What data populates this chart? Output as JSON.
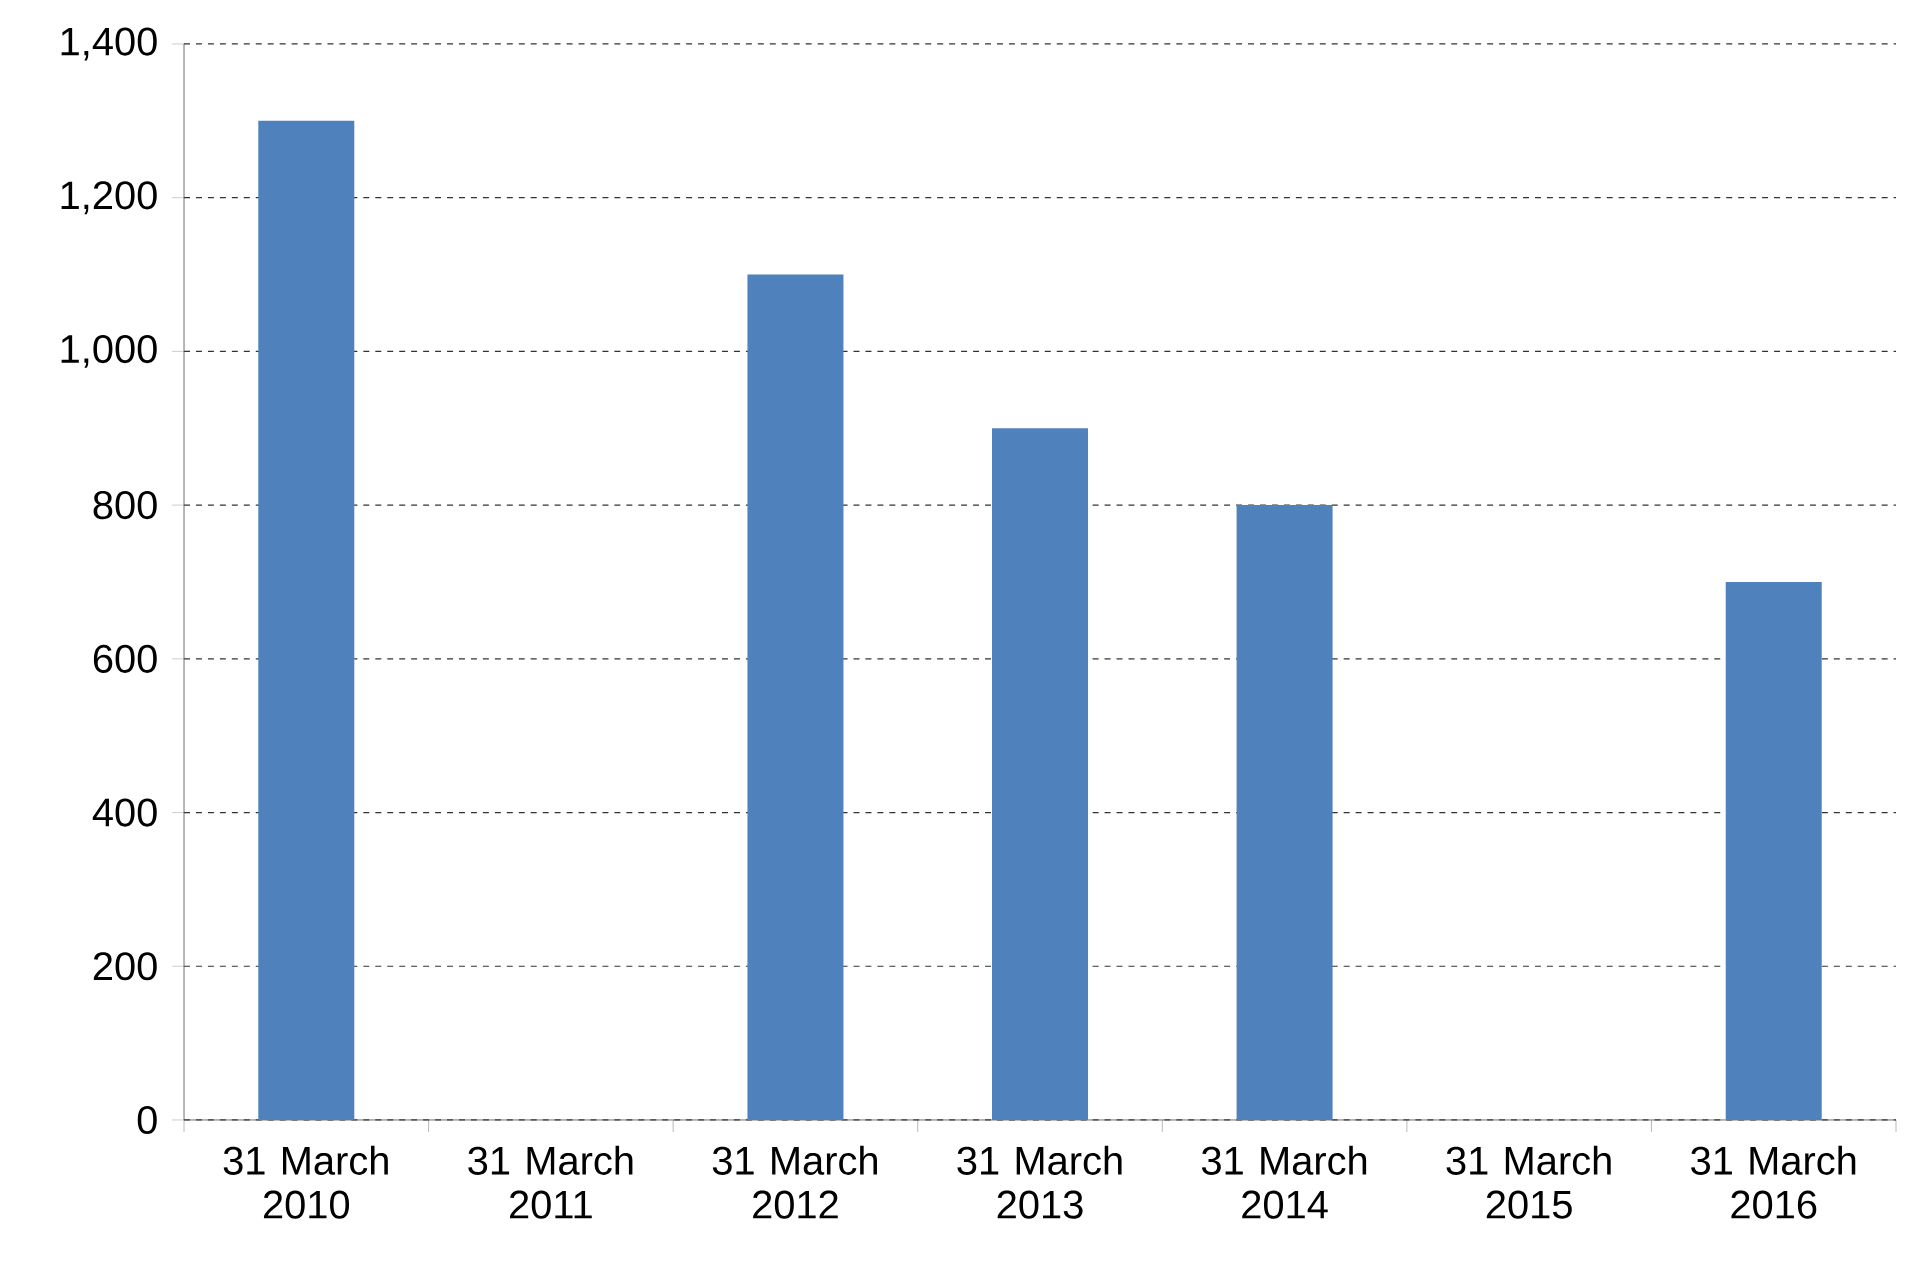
{
  "chart_data": {
    "type": "bar",
    "categories": [
      "31 March 2010",
      "31 March 2011",
      "31 March 2012",
      "31 March 2013",
      "31 March 2014",
      "31 March 2015",
      "31 March 2016"
    ],
    "values": [
      1300,
      null,
      1100,
      900,
      800,
      null,
      700
    ],
    "color": "#4f81bd",
    "ylim": [
      0,
      1400
    ],
    "yticks": [
      0,
      200,
      400,
      600,
      800,
      {
        "value": 1000,
        "label": "1,000"
      },
      {
        "value": 1200,
        "label": "1,200"
      },
      {
        "value": 1400,
        "label": "1,400"
      }
    ],
    "grid": "y"
  }
}
